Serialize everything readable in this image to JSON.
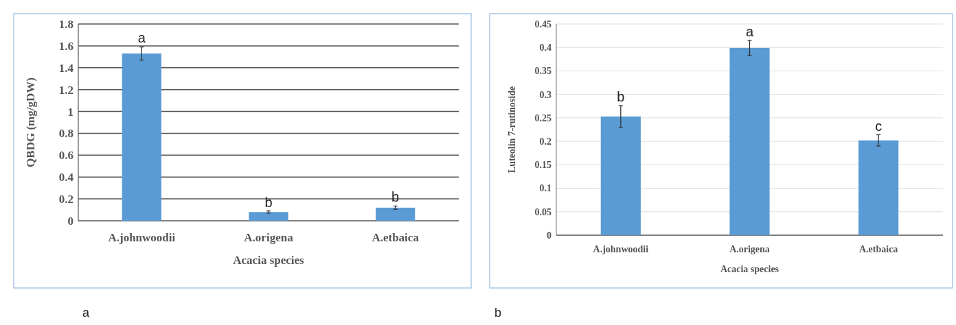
{
  "chart_data": [
    {
      "type": "bar",
      "categories": [
        "A.johnwoodii",
        "A.origena",
        "A.etbaica"
      ],
      "values": [
        1.53,
        0.08,
        0.12
      ],
      "errors": [
        0.06,
        0.01,
        0.015
      ],
      "color": "#5b9bd5",
      "xlabel": "Acacia species",
      "ylabel": "QBDG (mg/gDW)",
      "ylim": [
        0,
        1.8
      ],
      "yticks": [
        0,
        0.2,
        0.4,
        0.6,
        0.8,
        1,
        1.2,
        1.4,
        1.6,
        1.8
      ],
      "grid": "y",
      "annotations": [
        {
          "text": "a",
          "x": "A.johnwoodii",
          "y": 1.59
        },
        {
          "text": "b",
          "x": "A.origena",
          "y": 0.09
        },
        {
          "text": "b",
          "x": "A.etbaica",
          "y": 0.135
        },
        "a"
      ]
    },
    {
      "type": "bar",
      "categories": [
        "A.johnwoodii",
        "A.origena",
        "A.etbaica"
      ],
      "values": [
        0.253,
        0.399,
        0.202
      ],
      "errors": [
        0.023,
        0.016,
        0.012
      ],
      "color": "#5b9bd5",
      "xlabel": "Acacia species",
      "ylabel": "Luteolin 7-rutinoside",
      "ylim": [
        0,
        0.45
      ],
      "yticks": [
        0,
        0.05,
        0.1,
        0.15,
        0.2,
        0.25,
        0.3,
        0.35,
        0.4,
        0.45
      ],
      "grid": "y",
      "annotations": [
        {
          "text": "b",
          "x": "A.johnwoodii",
          "y": 0.276
        },
        {
          "text": "a",
          "x": "A.origena",
          "y": 0.415
        },
        {
          "text": "c",
          "x": "A.etbaica",
          "y": 0.214
        },
        "b"
      ]
    }
  ]
}
